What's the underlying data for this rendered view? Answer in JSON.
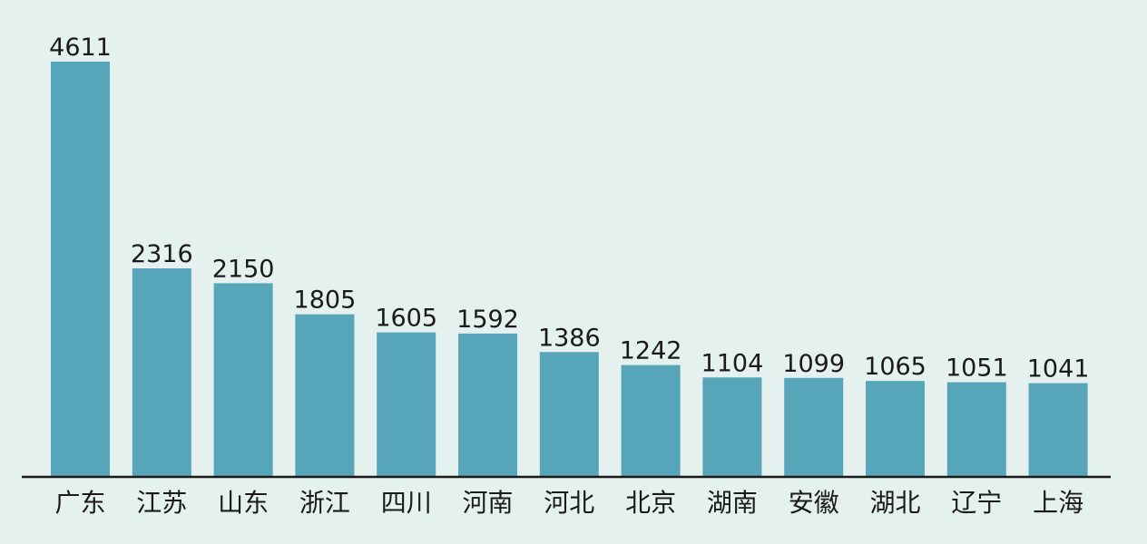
{
  "chart_data": {
    "type": "bar",
    "title": "",
    "xlabel": "",
    "ylabel": "",
    "grid": false,
    "legend": "none",
    "ylim": [
      0,
      4611
    ],
    "categories": [
      "广东",
      "江苏",
      "山东",
      "浙江",
      "四川",
      "河南",
      "河北",
      "北京",
      "湖南",
      "安徽",
      "湖北",
      "辽宁",
      "上海"
    ],
    "values": [
      4611,
      2316,
      2150,
      1805,
      1605,
      1592,
      1386,
      1242,
      1104,
      1099,
      1065,
      1051,
      1041
    ],
    "data_labels": [
      "4611",
      "2316",
      "2150",
      "1805",
      "1605",
      "1592",
      "1386",
      "1242",
      "1104",
      "1099",
      "1065",
      "1051",
      "1041"
    ]
  },
  "colors": {
    "background": "#e4f1ee",
    "bar": "#57a5b8",
    "text": "#1a1a1a",
    "axis": "#1a1a1a"
  }
}
